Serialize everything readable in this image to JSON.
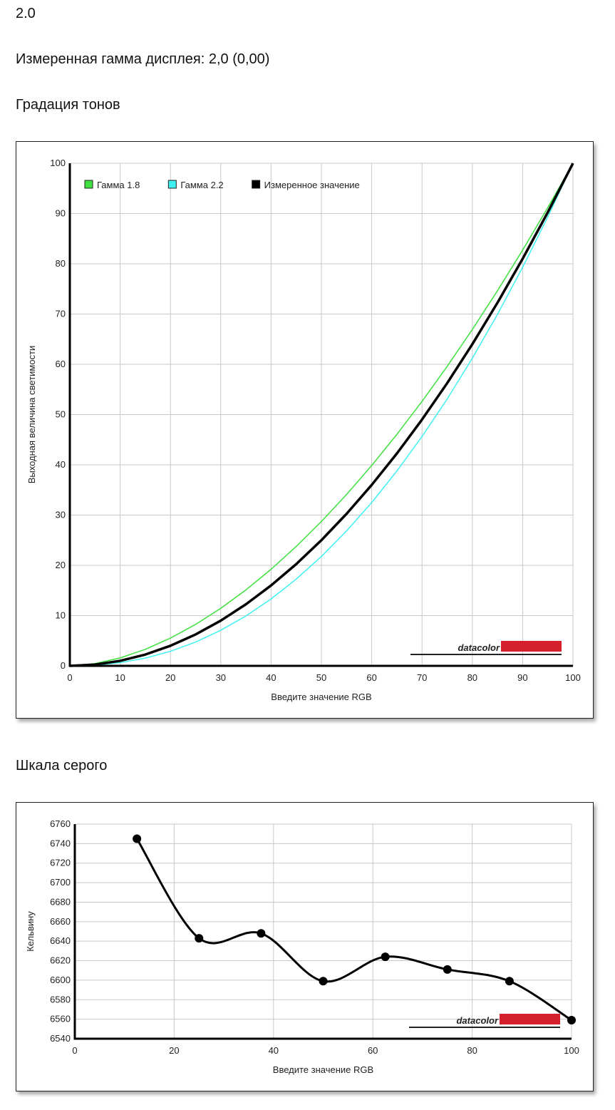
{
  "header": {
    "version": "2.0",
    "measured_gamma": "Измеренная гамма дисплея: 2,0 (0,00)"
  },
  "sections": [
    {
      "heading": "Градация тонов"
    },
    {
      "heading": "Шкала серого"
    }
  ],
  "chart_data": [
    {
      "type": "line",
      "xlabel": "Введите значение RGB",
      "ylabel": "Выходная величина светимости",
      "x": [
        0,
        5,
        10,
        15,
        20,
        25,
        30,
        35,
        40,
        45,
        50,
        55,
        60,
        65,
        70,
        75,
        80,
        85,
        90,
        95,
        100
      ],
      "series": [
        {
          "name": "Гамма 1.8",
          "color": "#3de23d",
          "width": 1.5,
          "values": [
            0,
            0.46,
            1.58,
            3.29,
            5.52,
            8.25,
            11.45,
            15.11,
            19.22,
            23.76,
            28.72,
            34.09,
            39.87,
            46.05,
            52.62,
            59.58,
            66.92,
            74.64,
            82.72,
            91.18,
            100
          ]
        },
        {
          "name": "Гамма 2.2",
          "color": "#3ff2f2",
          "width": 1.5,
          "values": [
            0,
            0.14,
            0.63,
            1.54,
            2.9,
            4.74,
            7.08,
            9.93,
            13.32,
            17.26,
            21.76,
            26.84,
            32.5,
            38.76,
            45.63,
            53.1,
            61.21,
            69.94,
            79.31,
            89.33,
            100
          ]
        },
        {
          "name": "Измеренное значение",
          "color": "#000000",
          "width": 3.5,
          "values": [
            0,
            0.25,
            1,
            2.25,
            4,
            6.25,
            9,
            12.25,
            16,
            20.25,
            25,
            30.25,
            36,
            42.25,
            49,
            56.25,
            64,
            72.25,
            81,
            90.25,
            100
          ]
        }
      ],
      "xlim": [
        0,
        100
      ],
      "xticks": [
        0,
        10,
        20,
        30,
        40,
        50,
        60,
        70,
        80,
        90,
        100
      ],
      "ylim": [
        0,
        100
      ],
      "yticks": [
        0,
        10,
        20,
        30,
        40,
        50,
        60,
        70,
        80,
        90,
        100
      ],
      "grid": true,
      "legend": "top-left",
      "watermark": "datacolor"
    },
    {
      "type": "line",
      "xlabel": "Введите значение RGB",
      "ylabel": "Кельвину",
      "x": [
        12.5,
        25,
        37.5,
        50,
        62.5,
        75,
        87.5,
        100
      ],
      "series": [
        {
          "color": "#000000",
          "width": 3,
          "markers": true,
          "smooth": true,
          "values": [
            6745,
            6643,
            6648,
            6599,
            6624,
            6611,
            6599,
            6559
          ]
        }
      ],
      "xlim": [
        0,
        100
      ],
      "xticks": [
        0,
        20,
        40,
        60,
        80,
        100
      ],
      "ylim": [
        6540,
        6760
      ],
      "yticks": [
        6540,
        6560,
        6580,
        6600,
        6620,
        6640,
        6660,
        6680,
        6700,
        6720,
        6740,
        6760
      ],
      "grid": true,
      "watermark": "datacolor"
    }
  ]
}
